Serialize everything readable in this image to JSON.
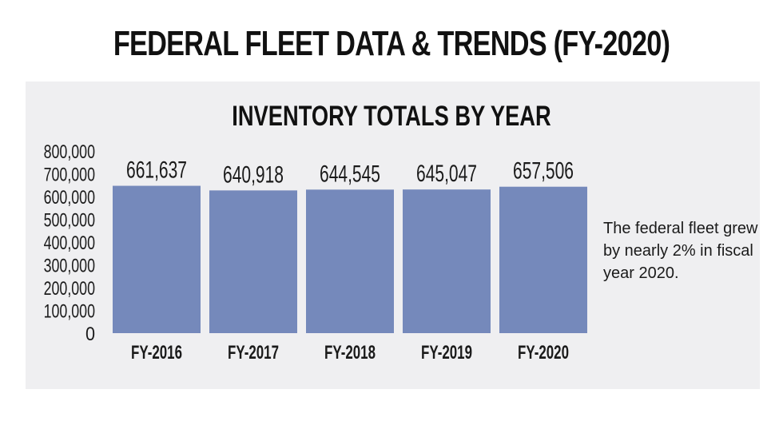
{
  "header": {
    "title": "FEDERAL FLEET DATA & TRENDS (FY-2020)"
  },
  "note": "The federal fleet grew by nearly 2% in fiscal year 2020.",
  "colors": {
    "bar": "#7589bb",
    "panel": "#efeff1",
    "text": "#1a1a1a"
  },
  "chart_data": {
    "type": "bar",
    "title": "INVENTORY TOTALS BY YEAR",
    "xlabel": "",
    "ylabel": "",
    "categories": [
      "FY-2016",
      "FY-2017",
      "FY-2018",
      "FY-2019",
      "FY-2020"
    ],
    "values": [
      661637,
      640918,
      644545,
      645047,
      657506
    ],
    "value_labels": [
      "661,637",
      "640,918",
      "644,545",
      "645,047",
      "657,506"
    ],
    "ylim": [
      0,
      800000
    ],
    "yticks": [
      0,
      100000,
      200000,
      300000,
      400000,
      500000,
      600000,
      700000,
      800000
    ],
    "ytick_labels": [
      "0",
      "100,000",
      "200,000",
      "300,000",
      "400,000",
      "500,000",
      "600,000",
      "700,000",
      "800,000"
    ],
    "grid": false,
    "legend": "none"
  }
}
